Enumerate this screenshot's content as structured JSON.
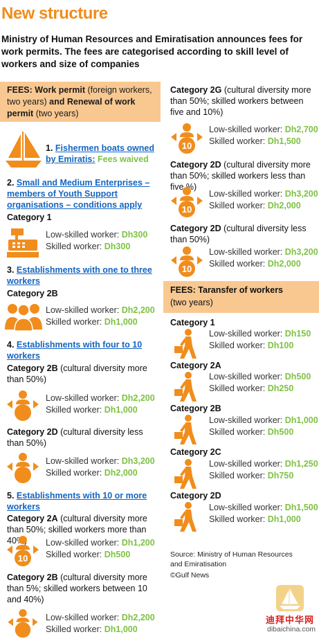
{
  "title": "New structure",
  "subtitle": "Ministry of Human Resources and Emiratisation announces fees for work permits. The fees are categorised according to skill level of workers and size of companies",
  "left": {
    "fees_box": {
      "label": "FEES:",
      "bold1": "Work permit",
      "text1": "(foreign workers, two years)",
      "bold2": "and Renewal of work permit",
      "text2": "(two years)"
    },
    "sec1": {
      "num": "1.",
      "link": "Fishermen boats owned by Emiratis:",
      "value": "Fees waived"
    },
    "sec2": {
      "num": "2.",
      "link": "Small and Medium Enterprises – members of Youth Support organisations – conditions apply"
    },
    "sec2_cat": "Category 1",
    "sec3": {
      "num": "3.",
      "link": "Establishments with one to three workers"
    },
    "sec3_cat": "Category 2B",
    "sec4": {
      "num": "4.",
      "link": "Establishments with four to 10 workers"
    },
    "sec4a_cat": "Category 2B",
    "sec4a_desc": "(cultural diversity more than 50%)",
    "sec4b_cat": "Category 2D",
    "sec4b_desc": "(cultural diversity less than 50%)",
    "sec5": {
      "num": "5.",
      "link": "Establishments with 10 or more workers"
    },
    "sec5a_cat": "Category 2A",
    "sec5a_desc": "(cultural diversity more than 50%; skilled workers more than 40%)",
    "sec5b_cat": "Category 2B",
    "sec5b_desc": "(cultural diversity more than 5%; skilled workers between 10 and 40%)"
  },
  "right": {
    "c1_cat": "Category 2G",
    "c1_desc": "(cultural diversity more than 50%; skilled workers between five and 10%)",
    "c2_cat": "Category 2D",
    "c2_desc": "(cultural diversity more than 50%; skilled workers less than five %)",
    "c3_cat": "Category 2D",
    "c3_desc": "(cultural diversity less than 50%)",
    "transfer_box": {
      "label": "FEES: Taransfer of workers",
      "sub": "(two years)"
    },
    "t_cats": [
      "Category 1",
      "Category 2A",
      "Category 2B",
      "Category 2C",
      "Category 2D"
    ],
    "source": "Source: Ministry of Human Resources and Emiratisation",
    "credit": "©Gulf News"
  },
  "labels": {
    "low": "Low-skilled worker:",
    "skilled": "Skilled worker:"
  },
  "fees": {
    "f1": {
      "low": "Dh300",
      "skilled": "Dh300"
    },
    "f2": {
      "low": "Dh2,200",
      "skilled": "Dh1,000"
    },
    "f3": {
      "low": "Dh2,200",
      "skilled": "Dh1,000"
    },
    "f4": {
      "low": "Dh3,200",
      "skilled": "Dh2,000"
    },
    "f5": {
      "low": "Dh1,200",
      "skilled": "Dh500"
    },
    "f6": {
      "low": "Dh2,200",
      "skilled": "Dh1,000"
    },
    "r1": {
      "low": "Dh2,700",
      "skilled": "Dh1,500"
    },
    "r2": {
      "low": "Dh3,200",
      "skilled": "Dh2,000"
    },
    "r3": {
      "low": "Dh3,200",
      "skilled": "Dh2,000"
    },
    "t1": {
      "low": "Dh150",
      "skilled": "Dh100"
    },
    "t2": {
      "low": "Dh500",
      "skilled": "Dh250"
    },
    "t3": {
      "low": "Dh1,000",
      "skilled": "Dh500"
    },
    "t4": {
      "low": "Dh1,250",
      "skilled": "Dh750"
    },
    "t5": {
      "low": "Dh1,500",
      "skilled": "Dh1,000"
    }
  },
  "icon_labels": {
    "ten": "10"
  },
  "watermark": {
    "cn": "迪拜中华网",
    "url": "dibaichina.com"
  },
  "colors": {
    "orange": "#f08d1c",
    "peach": "#f9c891",
    "green": "#7dc242",
    "link": "#1565c0"
  },
  "icons": [
    "sailboat-icon",
    "cash-register-icon",
    "people-group-icon",
    "people-ten-icon",
    "walking-worker-icon"
  ]
}
